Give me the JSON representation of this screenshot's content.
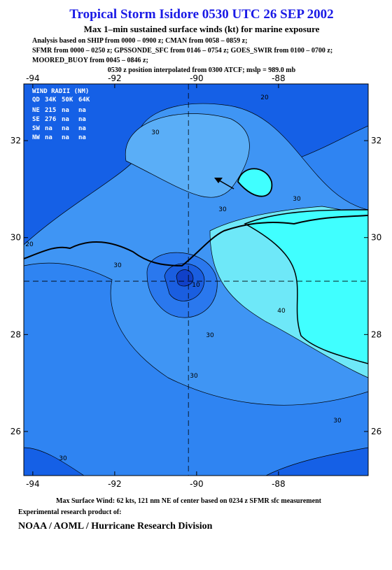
{
  "header": {
    "title": "Tropical Storm Isidore 0530 UTC 26 SEP 2002",
    "subtitle": "Max 1–min sustained surface winds (kt) for marine exposure",
    "analysis": [
      "Analysis based on  SHIP from 0000 – 0900 z;  CMAN from 0058 – 0859 z;",
      "SFMR from 0000 – 0250 z;  GPSSONDE_SFC from 0146 – 0754 z;  GOES_SWIR from 0100 – 0700 z;",
      "MOORED_BUOY from 0045 – 0846 z;"
    ],
    "position": "0530 z position interpolated from 0300 ATCF; mslp = 989.0 mb"
  },
  "map": {
    "xlim": [
      -94.22,
      -85.81
    ],
    "ylim": [
      25.09,
      33.17
    ],
    "xticks": [
      -94,
      -92,
      -90,
      -88
    ],
    "yticks": [
      32,
      30,
      28,
      26
    ],
    "center": [
      -90.2,
      29.1
    ],
    "contour_labels": [
      20,
      30,
      30,
      30,
      20,
      30,
      10,
      40,
      30,
      30,
      30,
      30
    ]
  },
  "wind_radii": {
    "title": "WIND RADII (NM)",
    "header": [
      "QD",
      "34K",
      "50K",
      "64K"
    ],
    "rows": [
      [
        "NE",
        "215",
        "na",
        "na"
      ],
      [
        "SE",
        "276",
        "na",
        "na"
      ],
      [
        "SW",
        "na",
        "na",
        "na"
      ],
      [
        "NW",
        "na",
        "na",
        "na"
      ]
    ]
  },
  "footer": {
    "max_wind": "Max Surface Wind: 62 kts, 121 nm NE of center based on 0234 z SFMR sfc measurement",
    "note": "Experimental research product of:",
    "org": "NOAA / AOML / Hurricane Research Division"
  }
}
